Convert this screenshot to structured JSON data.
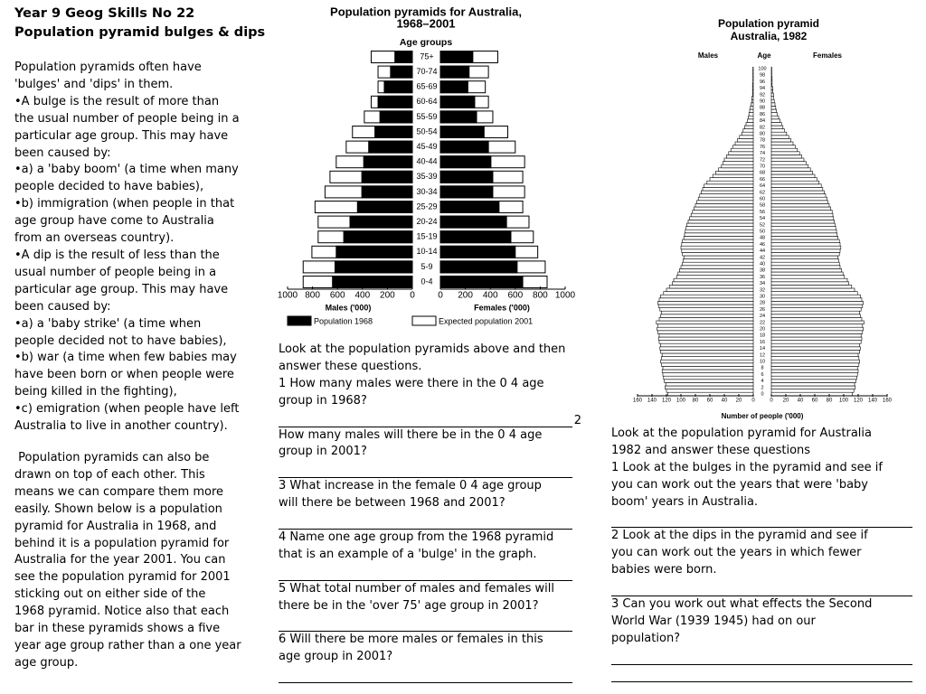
{
  "header": {
    "title": [
      "Year 9 Geog Skills No 22",
      "Population pyramid bulges & dips"
    ]
  },
  "intro": {
    "lines": [
      "Population pyramids often have",
      "'bulges' and 'dips' in them.",
      "•A bulge is the result of more than",
      "the usual number of people being in a",
      "particular age group. This may have",
      "been caused by:",
      "•a) a 'baby boom' (a time when many",
      "people decided to have babies),",
      "•b) immigration (when people in that",
      "age group have come to Australia",
      "from an overseas country).",
      "•A dip is the result of less than the",
      "usual number of people being in a",
      "particular age group. This may have",
      "been caused by:",
      "•a) a 'baby strike' (a time when",
      "people decided not to have babies),",
      "•b) war (a time when few babies may",
      "have been born or when people were",
      "being killed in the fighting),",
      "•c) emigration (when people have left",
      "Australia to live in another country)."
    ]
  },
  "intro2": {
    "lines": [
      " Population pyramids can also be",
      "drawn on top of each other. This",
      "means we can compare them more",
      "easily. Shown below is a population",
      "pyramid for Australia in 1968, and",
      "behind it is a population pyramid for",
      "Australia for the year 2001. You can",
      "see the population pyramid for 2001",
      "sticking out on either side of the",
      "1968 pyramid. Notice also that each",
      "bar in these pyramids shows a five",
      "year age group rather than a one year",
      "age group."
    ]
  },
  "questions_1": {
    "intro": [
      "Look at the population pyramids above and then",
      "answer these questions."
    ],
    "items": [
      {
        "lines": [
          "1 How many males were there in the 0 4 age",
          "group in 1968?"
        ],
        "answer_note": "2"
      },
      {
        "lines": [
          "How many males will there be in the 0 4 age",
          "group in 2001?"
        ]
      },
      {
        "lines": [
          "3 What increase in the female 0 4 age group",
          "will there be between 1968 and 2001?"
        ]
      },
      {
        "lines": [
          "4 Name one age group from the 1968 pyramid",
          "that is an example of a 'bulge' in the graph."
        ]
      },
      {
        "lines": [
          "5 What total number of males and females will",
          "there be in the 'over 75' age group in 2001?"
        ]
      },
      {
        "lines": [
          "6 Will there be more males or females in this",
          "age group in 2001?"
        ]
      }
    ]
  },
  "questions_2": {
    "intro": [
      "Look at the population pyramid for Australia",
      "1982 and answer these questions"
    ],
    "items": [
      {
        "lines": [
          "1 Look at the bulges in the pyramid and see if",
          "you can work out the years that were 'baby",
          "boom' years in Australia."
        ]
      },
      {
        "lines": [
          "2 Look at the dips in the pyramid and see if",
          "you can work out the years in which fewer",
          "babies were born."
        ]
      },
      {
        "lines": [
          "3 Can you work out what effects the Second",
          "World War (1939 1945) had on our",
          "population?"
        ]
      }
    ]
  },
  "chart_data": [
    {
      "type": "pyramid",
      "title": [
        "Population pyramids for Australia,",
        "1968–2001"
      ],
      "category_label": "Age groups",
      "x_label_left": "Males ('000)",
      "x_label_right": "Females ('000)",
      "categories": [
        "75+",
        "70-74",
        "65-69",
        "60-64",
        "55-59",
        "50-54",
        "45-49",
        "40-44",
        "35-39",
        "30-34",
        "25-29",
        "20-24",
        "15-19",
        "10-14",
        "5-9",
        "0-4"
      ],
      "xlim": [
        0,
        1000
      ],
      "xticks": [
        0,
        200,
        400,
        600,
        800,
        1000
      ],
      "series": [
        {
          "name": "Population 1968",
          "color": "#000000",
          "males": [
            140,
            175,
            225,
            275,
            260,
            300,
            350,
            390,
            405,
            405,
            440,
            500,
            550,
            610,
            620,
            640
          ],
          "females": [
            260,
            230,
            220,
            275,
            290,
            350,
            385,
            405,
            420,
            420,
            470,
            530,
            565,
            600,
            615,
            660
          ]
        },
        {
          "name": "Expected population 2001",
          "color": "#ffffff",
          "males": [
            330,
            275,
            275,
            330,
            385,
            480,
            530,
            610,
            660,
            700,
            780,
            755,
            755,
            805,
            875,
            875
          ],
          "females": [
            460,
            385,
            360,
            385,
            420,
            540,
            600,
            675,
            660,
            675,
            660,
            710,
            745,
            780,
            840,
            855
          ]
        }
      ]
    },
    {
      "type": "pyramid",
      "title": [
        "Population pyramid",
        "Australia, 1982"
      ],
      "left_label": "Males",
      "category_label": "Age",
      "right_label": "Females",
      "x_label": "Number of people ('000)",
      "categories": [
        "0",
        null,
        "2",
        null,
        "4",
        null,
        "6",
        null,
        "8",
        null,
        "10",
        null,
        "12",
        null,
        "14",
        null,
        "16",
        null,
        "18",
        null,
        "20",
        null,
        "22",
        null,
        "24",
        null,
        "26",
        null,
        "28",
        null,
        "30",
        null,
        "32",
        null,
        "34",
        null,
        "36",
        null,
        "38",
        null,
        "40",
        null,
        "42",
        null,
        "44",
        null,
        "46",
        null,
        "48",
        null,
        "50",
        null,
        "52",
        null,
        "54",
        null,
        "56",
        null,
        "58",
        null,
        "60",
        null,
        "62",
        null,
        "64",
        null,
        "66",
        null,
        "68",
        null,
        "70",
        null,
        "72",
        null,
        "74",
        null,
        "76",
        null,
        "78",
        null,
        "80",
        null,
        "82",
        null,
        "84",
        null,
        "86",
        null,
        "88",
        null,
        "90",
        null,
        "92",
        null,
        "94",
        null,
        "96",
        null,
        "98",
        null,
        "100"
      ],
      "xlim": [
        0,
        160
      ],
      "xticks": [
        0,
        20,
        40,
        60,
        80,
        100,
        120,
        140,
        160
      ],
      "series": [
        {
          "name": "Males",
          "color": "#ffffff",
          "values": [
            118,
            120,
            122,
            121,
            123,
            124,
            125,
            126,
            125,
            127,
            128,
            127,
            126,
            128,
            129,
            128,
            130,
            131,
            130,
            132,
            133,
            132,
            134,
            130,
            128,
            127,
            129,
            131,
            132,
            130,
            128,
            124,
            120,
            116,
            112,
            110,
            106,
            104,
            102,
            100,
            98,
            97,
            96,
            98,
            99,
            100,
            99,
            98,
            96,
            95,
            94,
            93,
            92,
            90,
            88,
            86,
            84,
            82,
            80,
            78,
            76,
            74,
            72,
            70,
            68,
            64,
            60,
            56,
            52,
            48,
            44,
            42,
            40,
            37,
            34,
            31,
            28,
            25,
            22,
            19,
            16,
            14,
            12,
            10,
            8,
            7,
            6,
            5,
            4,
            3,
            2,
            2,
            1,
            1,
            1,
            1,
            0.5,
            0.5,
            0.5,
            0.5,
            0.5
          ]
        },
        {
          "name": "Females",
          "color": "#ffffff",
          "values": [
            112,
            114,
            116,
            115,
            117,
            118,
            119,
            120,
            119,
            121,
            122,
            121,
            120,
            122,
            123,
            122,
            124,
            125,
            124,
            126,
            127,
            126,
            128,
            125,
            123,
            122,
            124,
            126,
            127,
            125,
            123,
            119,
            115,
            111,
            107,
            105,
            101,
            99,
            97,
            95,
            94,
            93,
            92,
            94,
            95,
            96,
            95,
            94,
            92,
            91,
            90,
            89,
            88,
            87,
            86,
            85,
            84,
            82,
            80,
            78,
            77,
            75,
            73,
            71,
            69,
            66,
            63,
            60,
            57,
            54,
            51,
            48,
            45,
            42,
            39,
            36,
            33,
            30,
            27,
            24,
            21,
            18,
            16,
            14,
            12,
            10,
            8,
            7,
            6,
            5,
            4,
            3,
            3,
            2,
            2,
            1,
            1,
            1,
            0.5,
            0.5,
            0.5
          ]
        }
      ]
    }
  ]
}
